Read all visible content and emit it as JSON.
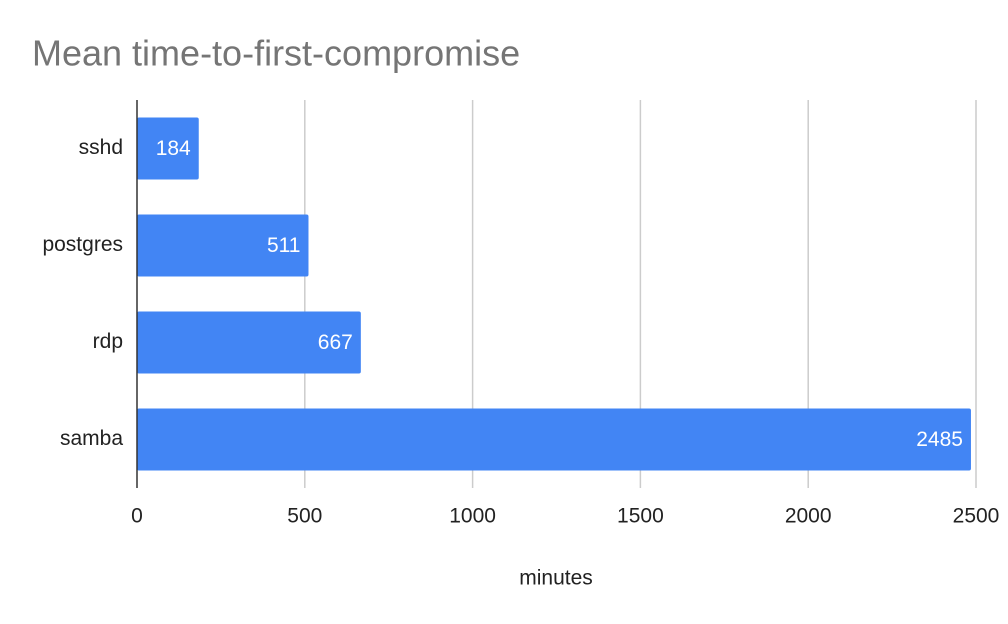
{
  "chart_data": {
    "type": "bar",
    "orientation": "horizontal",
    "title": "Mean time-to-first-compromise",
    "categories": [
      "sshd",
      "postgres",
      "rdp",
      "samba"
    ],
    "values": [
      184,
      511,
      667,
      2485
    ],
    "color": "#4285f4",
    "xlabel": "minutes",
    "xlim": [
      0,
      2500
    ],
    "xticks": [
      0,
      500,
      1000,
      1500,
      2000,
      2500
    ],
    "grid": true,
    "data_labels": true
  }
}
